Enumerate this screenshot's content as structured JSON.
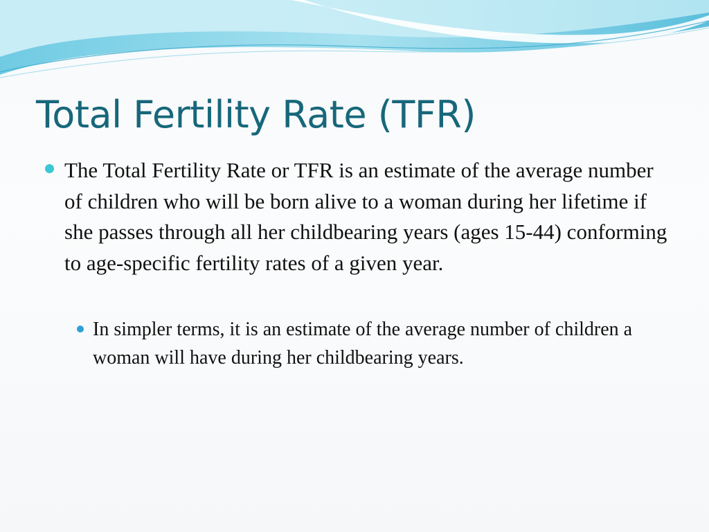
{
  "slide": {
    "title": "Total Fertility Rate (TFR)",
    "bullets": [
      {
        "level": 1,
        "text": "The Total Fertility Rate or TFR is an estimate of the average number of children who will be born alive to a woman during her lifetime if she passes through all her childbearing years (ages 15-44) conforming to age-specific fertility rates of a given year."
      },
      {
        "level": 2,
        "text": "In simpler terms, it is an estimate of the average number of children a woman will have during her childbearing years."
      }
    ]
  },
  "colors": {
    "title": "#17677a",
    "bullet_level1": "#3cc7d5",
    "bullet_level2": "#2f9fd6",
    "wave_light": "#c8eef6",
    "wave_mid": "#8fd6ea",
    "wave_dark": "#4fb6d6",
    "text": "#111111"
  }
}
